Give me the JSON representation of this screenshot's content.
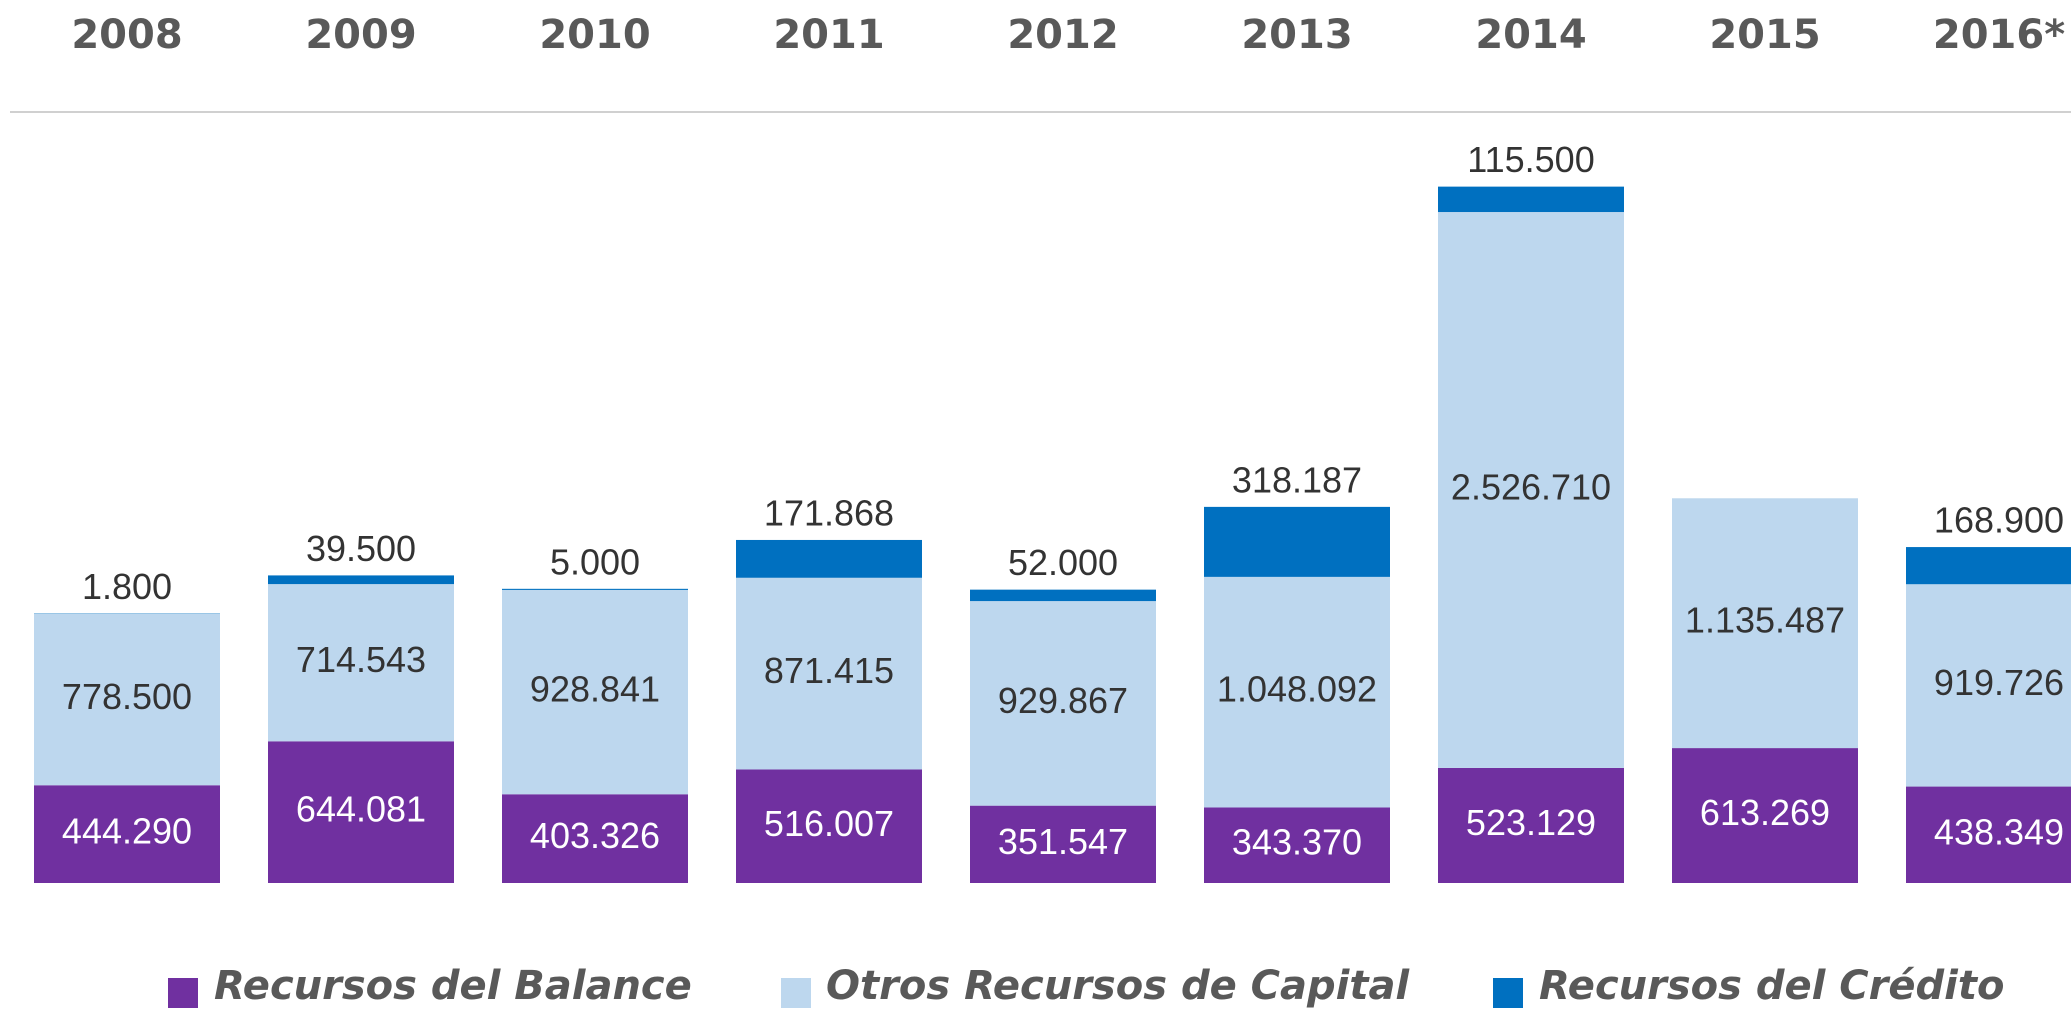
{
  "chart_data": {
    "type": "stacked_bar",
    "categories": [
      "2008",
      "2009",
      "2010",
      "2011",
      "2012",
      "2013",
      "2014",
      "2015",
      "2016*"
    ],
    "series": [
      {
        "name": "Recursos del Balance",
        "color": "#7030a0",
        "values": [
          444290,
          644081,
          403326,
          516007,
          351547,
          343370,
          523129,
          613269,
          438349
        ],
        "value_labels": [
          "444.290",
          "644.081",
          "403.326",
          "516.007",
          "351.547",
          "343.370",
          "523.129",
          "613.269",
          "438.349"
        ]
      },
      {
        "name": "Otros Recursos de Capital",
        "color": "#bdd7ee",
        "values": [
          778500,
          714543,
          928841,
          871415,
          929867,
          1048092,
          2526710,
          1135487,
          919726
        ],
        "value_labels": [
          "778.500",
          "714.543",
          "928.841",
          "871.415",
          "929.867",
          "1.048.092",
          "2.526.710",
          "1.135.487",
          "919.726"
        ]
      },
      {
        "name": "Recursos del Crédito",
        "color": "#0070c0",
        "values": [
          1800,
          39500,
          5000,
          171868,
          52000,
          318187,
          115500,
          null,
          168900
        ],
        "value_labels": [
          "1.800",
          "39.500",
          "5.000",
          "171.868",
          "52.000",
          "318.187",
          "115.500",
          null,
          "168.900"
        ]
      }
    ],
    "ylim": [
      0,
      3500000
    ]
  }
}
